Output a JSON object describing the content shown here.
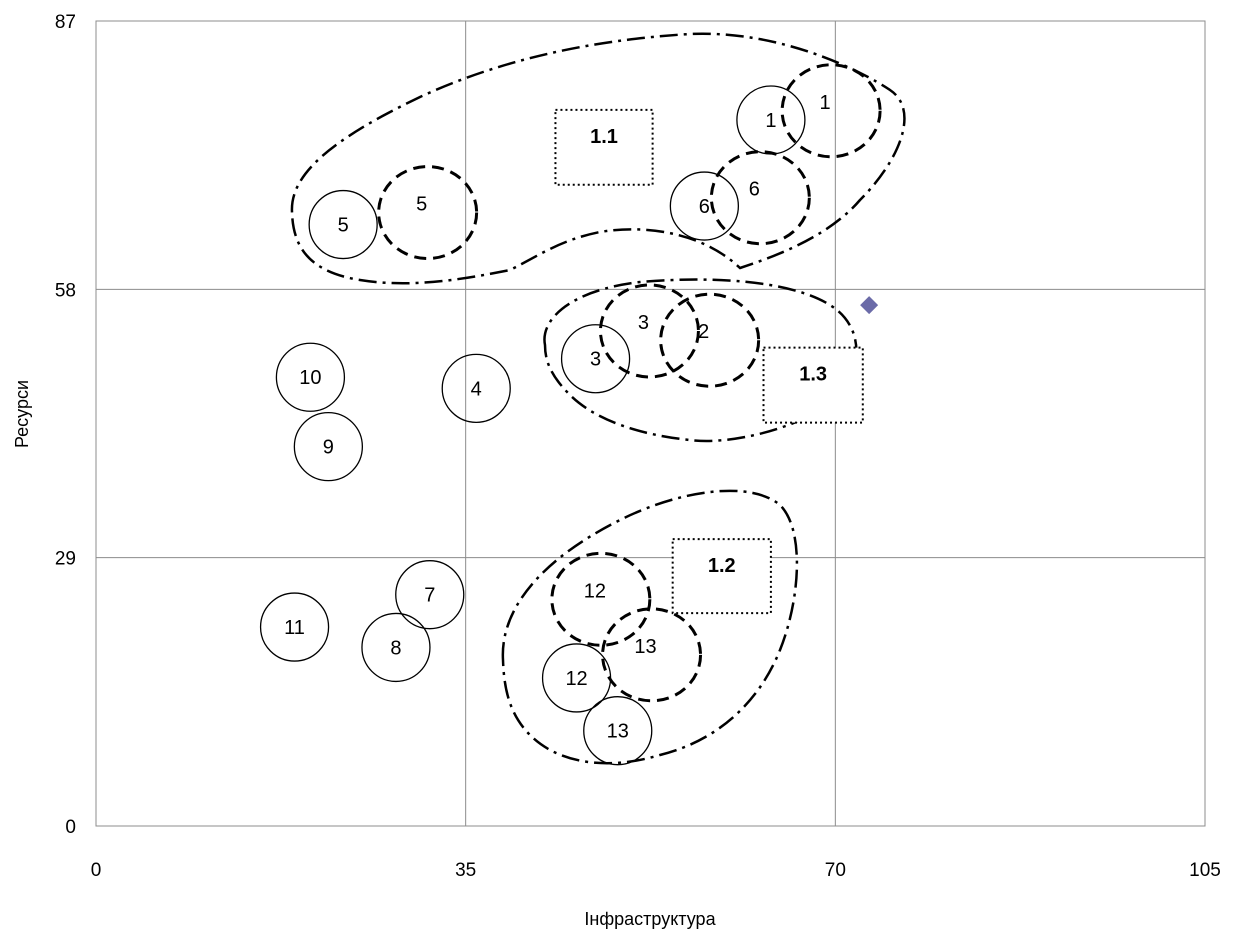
{
  "chart_data": {
    "type": "scatter",
    "xlabel": "Інфраструктура",
    "ylabel": "Ресурси",
    "xlim": [
      0,
      105
    ],
    "ylim": [
      0,
      87
    ],
    "x_ticks": [
      0,
      35,
      70,
      105
    ],
    "y_ticks": [
      0,
      29,
      58,
      87
    ],
    "grid": true,
    "point_color": "#6B6BA8",
    "point_marker": "diamond",
    "points": [
      {
        "x": 73.2,
        "y": 56.3
      }
    ],
    "bubbles_solid": [
      {
        "label": "1",
        "x": 63.9,
        "y": 76.3
      },
      {
        "label": "6",
        "x": 57.6,
        "y": 67.0
      },
      {
        "label": "5",
        "x": 23.4,
        "y": 65.0
      },
      {
        "label": "3",
        "x": 47.3,
        "y": 50.5
      },
      {
        "label": "10",
        "x": 20.3,
        "y": 48.5
      },
      {
        "label": "4",
        "x": 36.0,
        "y": 47.3
      },
      {
        "label": "9",
        "x": 22.0,
        "y": 41.0
      },
      {
        "label": "7",
        "x": 31.6,
        "y": 25.0
      },
      {
        "label": "11",
        "x": 18.8,
        "y": 21.5
      },
      {
        "label": "8",
        "x": 28.4,
        "y": 19.3
      },
      {
        "label": "12",
        "x": 45.5,
        "y": 16.0
      },
      {
        "label": "13",
        "x": 49.4,
        "y": 10.3
      }
    ],
    "bubbles_dashed": [
      {
        "label": "1",
        "x": 69.6,
        "y": 77.3
      },
      {
        "label": "6",
        "x": 62.9,
        "y": 67.9
      },
      {
        "label": "5",
        "x": 31.4,
        "y": 66.3
      },
      {
        "label": "3",
        "x": 52.4,
        "y": 53.5
      },
      {
        "label": "2",
        "x": 58.1,
        "y": 52.5
      },
      {
        "label": "12",
        "x": 47.8,
        "y": 24.5
      },
      {
        "label": "13",
        "x": 52.6,
        "y": 18.5
      }
    ],
    "group_boxes": [
      {
        "label": "1.1",
        "x0": 43.5,
        "x1": 52.7,
        "y0": 69.3,
        "y1": 77.4
      },
      {
        "label": "1.3",
        "x0": 63.2,
        "x1": 72.6,
        "y0": 43.6,
        "y1": 51.7
      },
      {
        "label": "1.2",
        "x0": 54.6,
        "x1": 63.9,
        "y0": 23.0,
        "y1": 31.0
      }
    ],
    "group_outlines": [
      {
        "name": "1.1"
      },
      {
        "name": "1.3"
      },
      {
        "name": "1.2"
      }
    ]
  }
}
